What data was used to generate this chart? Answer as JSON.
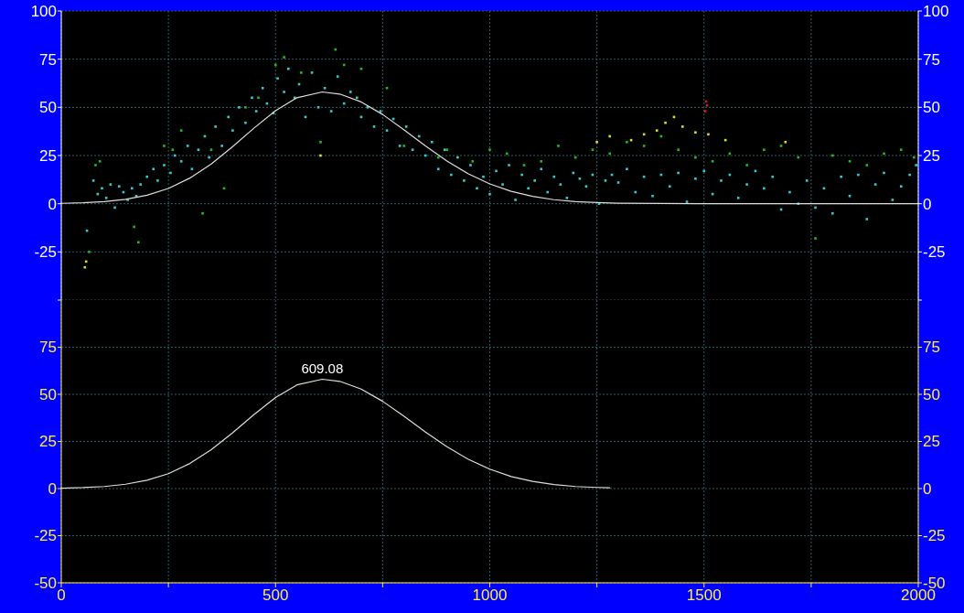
{
  "chart_data": [
    {
      "type": "scatter",
      "xlim": [
        0,
        2000
      ],
      "xticks": [
        0,
        250,
        500,
        750,
        1000,
        1250,
        1500,
        1750,
        2000
      ],
      "ylim": [
        -50,
        100
      ],
      "yticks": [
        {
          "value": -50,
          "label": null
        },
        -25,
        0,
        25,
        50,
        75,
        100
      ],
      "y2lim": [
        -50,
        100
      ],
      "y2ticks": [
        {
          "value": -50,
          "label": null
        },
        -25,
        0,
        25,
        50,
        75,
        100
      ],
      "tick_labels": "y",
      "grid": true,
      "series": [
        {
          "marker": "square",
          "color": "#33cccc",
          "x": [
            60,
            75,
            85,
            95,
            105,
            115,
            125,
            135,
            145,
            155,
            165,
            175,
            185,
            200,
            215,
            225,
            240,
            255,
            265,
            280,
            295,
            305,
            320,
            335,
            345,
            360,
            375,
            390,
            400,
            415,
            430,
            445,
            455,
            470,
            480,
            495,
            505,
            520,
            530,
            545,
            555,
            570,
            585,
            600,
            615,
            630,
            645,
            660,
            675,
            690,
            700,
            715,
            730,
            745,
            760,
            775,
            790,
            805,
            820,
            835,
            850,
            865,
            880,
            895,
            910,
            925,
            940,
            955,
            970,
            985,
            1000,
            1015,
            1030,
            1045,
            1060,
            1075,
            1090,
            1105,
            1120,
            1135,
            1150,
            1165,
            1180,
            1195,
            1210,
            1225,
            1240,
            1255,
            1270,
            1285,
            1300,
            1320,
            1340,
            1360,
            1380,
            1400,
            1420,
            1440,
            1460,
            1480,
            1500,
            1520,
            1540,
            1560,
            1580,
            1600,
            1620,
            1640,
            1660,
            1680,
            1700,
            1720,
            1740,
            1760,
            1780,
            1800,
            1820,
            1840,
            1860,
            1880,
            1900,
            1920,
            1940,
            1960,
            1980,
            1995
          ],
          "values": [
            -14,
            12,
            5,
            8,
            3,
            10,
            -2,
            9,
            6,
            2,
            8,
            4,
            10,
            14,
            18,
            12,
            20,
            16,
            25,
            22,
            30,
            18,
            28,
            35,
            24,
            40,
            30,
            45,
            38,
            50,
            42,
            55,
            48,
            60,
            52,
            47,
            65,
            58,
            70,
            55,
            62,
            45,
            68,
            50,
            60,
            48,
            66,
            52,
            58,
            55,
            45,
            50,
            40,
            48,
            38,
            44,
            30,
            40,
            28,
            35,
            25,
            32,
            18,
            28,
            15,
            24,
            12,
            20,
            8,
            14,
            5,
            17,
            10,
            20,
            2,
            15,
            8,
            12,
            18,
            6,
            14,
            10,
            3,
            16,
            13,
            9,
            15,
            0,
            12,
            15,
            11,
            18,
            6,
            14,
            4,
            15,
            9,
            16,
            1,
            13,
            17,
            5,
            12,
            15,
            3,
            10,
            17,
            8,
            14,
            -3,
            6,
            0,
            12,
            -2,
            8,
            -5,
            14,
            4,
            15,
            -8,
            10,
            16,
            2,
            9,
            15,
            20
          ]
        },
        {
          "marker": "square",
          "color": "#22bb22",
          "x": [
            65,
            80,
            90,
            170,
            180,
            240,
            260,
            280,
            330,
            350,
            380,
            430,
            460,
            500,
            520,
            560,
            605,
            640,
            660,
            700,
            760,
            800,
            880,
            900,
            960,
            1000,
            1040,
            1080,
            1120,
            1160,
            1200,
            1240,
            1280,
            1320,
            1360,
            1400,
            1440,
            1480,
            1520,
            1560,
            1600,
            1640,
            1680,
            1720,
            1760,
            1800,
            1840,
            1880,
            1920,
            1960,
            1990
          ],
          "values": [
            -25,
            20,
            22,
            -12,
            -20,
            30,
            28,
            38,
            -5,
            28,
            8,
            50,
            55,
            72,
            76,
            68,
            32,
            80,
            72,
            70,
            60,
            30,
            24,
            28,
            22,
            28,
            26,
            20,
            22,
            30,
            24,
            28,
            26,
            32,
            30,
            35,
            28,
            24,
            22,
            26,
            20,
            28,
            30,
            24,
            -18,
            25,
            22,
            20,
            26,
            28,
            24
          ]
        },
        {
          "marker": "square",
          "color": "#dddd22",
          "x": [
            55,
            58,
            605,
            1250,
            1280,
            1330,
            1360,
            1390,
            1410,
            1430,
            1450,
            1480,
            1510,
            1550,
            1690
          ],
          "values": [
            -33,
            -30,
            25,
            32,
            35,
            33,
            36,
            38,
            42,
            45,
            40,
            37,
            36,
            33,
            32
          ]
        },
        {
          "marker": "square",
          "color": "#cc2222",
          "x": [
            1505,
            1507,
            1503
          ],
          "values": [
            53,
            51,
            48
          ]
        },
        {
          "type": "line",
          "color": "#dddddd",
          "x": [
            0,
            50,
            100,
            150,
            200,
            250,
            300,
            350,
            400,
            450,
            500,
            550,
            609.08,
            650,
            700,
            750,
            800,
            850,
            900,
            950,
            1000,
            1050,
            1100,
            1150,
            1200,
            1250,
            1300,
            1400,
            1500,
            2000
          ],
          "values": [
            0.2,
            0.5,
            1.1,
            2.3,
            4.4,
            7.9,
            13.3,
            20.6,
            29.6,
            39.3,
            48.3,
            55,
            58,
            56.9,
            52.8,
            46.3,
            38.3,
            30,
            22.2,
            15.5,
            10.3,
            6.4,
            3.8,
            2.1,
            1.1,
            0.6,
            0.3,
            0.1,
            0,
            0
          ]
        }
      ]
    },
    {
      "type": "line",
      "xlim": [
        0,
        2000
      ],
      "xticks": [
        0,
        {
          "value": 250,
          "label": null
        },
        500,
        {
          "value": 750,
          "label": null
        },
        1000,
        {
          "value": 1250,
          "label": null
        },
        1500,
        {
          "value": 1750,
          "label": null
        },
        2000
      ],
      "ylim": [
        -50,
        100
      ],
      "yticks": [
        -50,
        -25,
        0,
        25,
        50,
        75
      ],
      "y2lim": [
        -50,
        100
      ],
      "y2ticks": [
        -50,
        -25,
        0,
        25,
        50,
        75
      ],
      "grid": true,
      "annotations": [
        {
          "text": "609.08",
          "x": 609.08,
          "y": 58
        }
      ],
      "series": [
        {
          "color": "#dddddd",
          "x": [
            0,
            50,
            100,
            150,
            200,
            250,
            300,
            350,
            400,
            450,
            500,
            550,
            609.08,
            650,
            700,
            750,
            800,
            850,
            900,
            950,
            1000,
            1050,
            1100,
            1150,
            1200,
            1250,
            1280
          ],
          "values": [
            0.2,
            0.5,
            1.1,
            2.3,
            4.4,
            7.9,
            13.3,
            20.6,
            29.6,
            39.3,
            48.3,
            55,
            58,
            56.9,
            52.8,
            46.3,
            38.3,
            30,
            22.2,
            15.5,
            10.3,
            6.4,
            3.8,
            2.1,
            1.1,
            0.6,
            0.4
          ]
        }
      ]
    }
  ]
}
